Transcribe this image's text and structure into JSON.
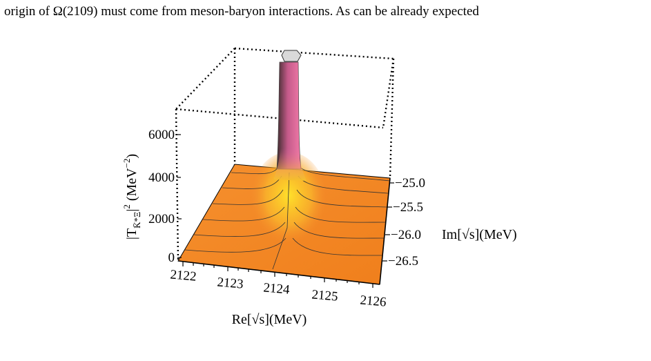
{
  "text_line": "origin of Ω(2109) must come from meson-baryon interactions. As can be already expected",
  "figure": {
    "z_axis_label": {
      "base": "|T",
      "subscript": "K̄*Ξ",
      "power": "2",
      "unit": "(MeV",
      "unit_power": "−2",
      "close": ")"
    },
    "z_ticks": [
      "6000",
      "4000",
      "2000",
      "0"
    ],
    "x_axis_label": "Re[√s](MeV)",
    "x_ticks": [
      "2122",
      "2123",
      "2124",
      "2125",
      "2126"
    ],
    "y_axis_label": "Im[√s](MeV)",
    "y_ticks": [
      "−25.0",
      "−25.5",
      "−26.0",
      "−26.5"
    ]
  }
}
